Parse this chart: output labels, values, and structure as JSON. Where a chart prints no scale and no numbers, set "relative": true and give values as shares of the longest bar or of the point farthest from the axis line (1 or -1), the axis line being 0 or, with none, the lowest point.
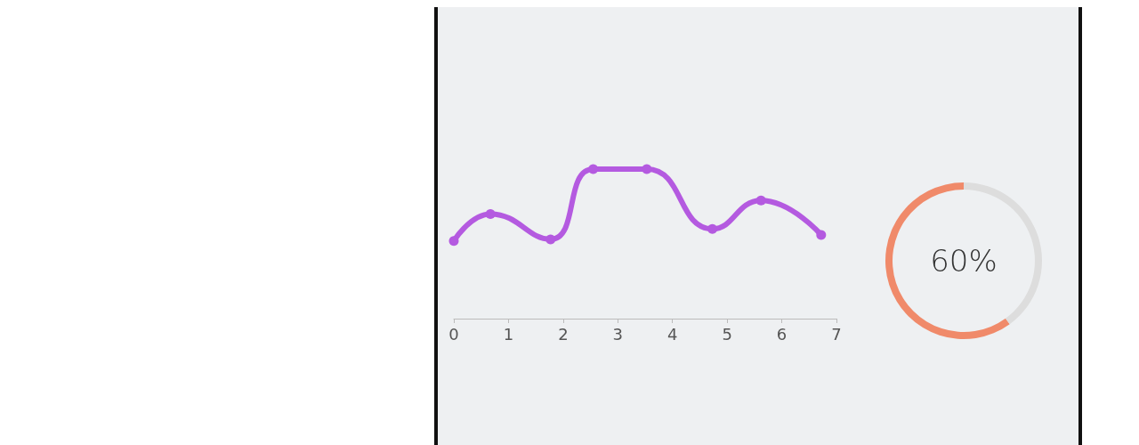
{
  "chart_data": [
    {
      "type": "line",
      "relative": true,
      "x": [
        0,
        0.67,
        1.77,
        2.55,
        3.53,
        4.73,
        5.62,
        6.72
      ],
      "series": [
        {
          "color": "#b45ae0",
          "values": [
            0.52,
            0.7,
            0.53,
            1.0,
            1.0,
            0.6,
            0.79,
            0.56
          ]
        }
      ],
      "xlim": [
        0,
        7
      ],
      "xticks": [
        0,
        1,
        2,
        3,
        4,
        5,
        6,
        7
      ],
      "marker": "circle",
      "line_style": "solid"
    },
    {
      "type": "donut",
      "categories": [
        null,
        null
      ],
      "values": [
        60,
        40
      ],
      "colors": [
        "#f08a6a",
        "#dddddd"
      ],
      "annotations": [
        "60%"
      ]
    }
  ]
}
